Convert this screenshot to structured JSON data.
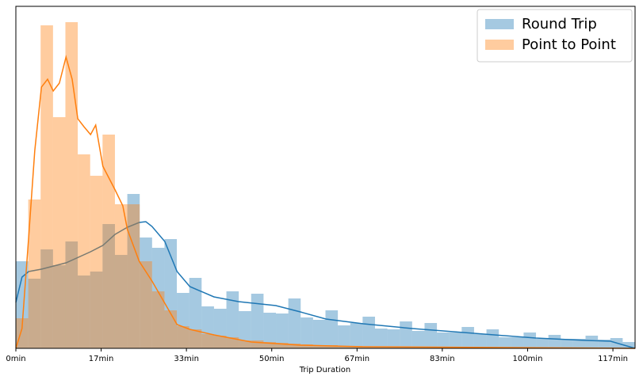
{
  "chart_data": {
    "type": "histogram",
    "xlabel": "Trip Duration",
    "xlim": [
      0,
      121
    ],
    "ylim": [
      0,
      432
    ],
    "xticks": [
      {
        "value": 0,
        "label": "0min"
      },
      {
        "value": 16.67,
        "label": "17min"
      },
      {
        "value": 33.33,
        "label": "33min"
      },
      {
        "value": 50,
        "label": "50min"
      },
      {
        "value": 66.67,
        "label": "67min"
      },
      {
        "value": 83.33,
        "label": "83min"
      },
      {
        "value": 100,
        "label": "100min"
      },
      {
        "value": 116.67,
        "label": "117min"
      }
    ],
    "legend": "upper right",
    "bins": [
      0,
      2.42,
      4.84,
      7.26,
      9.68,
      12.1,
      14.52,
      16.94,
      19.36,
      21.78,
      24.2,
      26.62,
      29.04,
      31.46,
      33.88,
      36.3,
      38.72,
      41.14,
      43.56,
      45.98,
      48.4,
      50.82,
      53.24,
      55.66,
      58.08,
      60.5,
      62.92,
      65.34,
      67.76,
      70.18,
      72.6,
      75.02,
      77.44,
      79.86,
      82.28,
      84.7,
      87.12,
      89.54,
      91.96,
      94.38,
      96.8,
      99.22,
      101.64,
      104.06,
      106.48,
      108.9,
      111.32,
      113.74,
      116.16,
      118.58,
      121
    ],
    "series": [
      {
        "name": "Round Trip",
        "color": "#1f77b4",
        "values": [
          110,
          88,
          125,
          105,
          135,
          92,
          97,
          157,
          118,
          195,
          140,
          127,
          138,
          70,
          89,
          53,
          50,
          72,
          47,
          69,
          45,
          44,
          63,
          39,
          36,
          48,
          29,
          32,
          40,
          25,
          24,
          34,
          22,
          32,
          20,
          20,
          27,
          18,
          24,
          14,
          14,
          20,
          12,
          17,
          12,
          12,
          16,
          11,
          13,
          8
        ],
        "kde": {
          "x": [
            0,
            1.2,
            2.5,
            5.0,
            9.8,
            14.6,
            17.0,
            19.4,
            21.8,
            24.1,
            25.4,
            26.6,
            29.1,
            31.5,
            34.0,
            38.7,
            43.5,
            50.8,
            55.6,
            60.6,
            67.9,
            77.5,
            89.5,
            101.6,
            111.4,
            116.2,
            121
          ],
          "values": [
            58,
            90,
            97,
            100,
            108,
            122,
            130,
            144,
            153,
            159,
            160,
            154,
            135,
            97,
            78,
            65,
            59,
            54,
            46,
            37,
            31,
            25,
            19,
            13,
            10,
            9,
            0
          ]
        }
      },
      {
        "name": "Point to Point",
        "color": "#ff7f0e",
        "values": [
          38,
          188,
          408,
          292,
          412,
          245,
          218,
          270,
          182,
          182,
          110,
          72,
          48,
          28,
          24,
          18,
          16,
          14,
          10,
          10,
          8,
          7,
          6,
          5,
          4,
          4,
          3,
          3,
          2,
          2,
          2,
          2,
          1,
          1,
          1,
          1,
          1,
          1,
          1,
          0,
          0,
          0,
          0,
          0,
          0,
          0,
          0,
          0,
          0,
          0
        ],
        "kde": {
          "x": [
            0,
            1.2,
            2.5,
            3.7,
            5.0,
            6.2,
            7.3,
            8.5,
            9.8,
            11.0,
            12.1,
            13.3,
            14.6,
            15.6,
            17.0,
            19.4,
            20.9,
            21.8,
            24.1,
            26.6,
            29.1,
            31.5,
            34.0,
            38.7,
            46.0,
            55.6,
            67.9,
            121
          ],
          "values": [
            0,
            25,
            140,
            250,
            330,
            340,
            325,
            335,
            368,
            340,
            290,
            280,
            270,
            282,
            230,
            200,
            180,
            150,
            110,
            85,
            57,
            30,
            24,
            17,
            8,
            4,
            2,
            0
          ]
        }
      }
    ]
  }
}
